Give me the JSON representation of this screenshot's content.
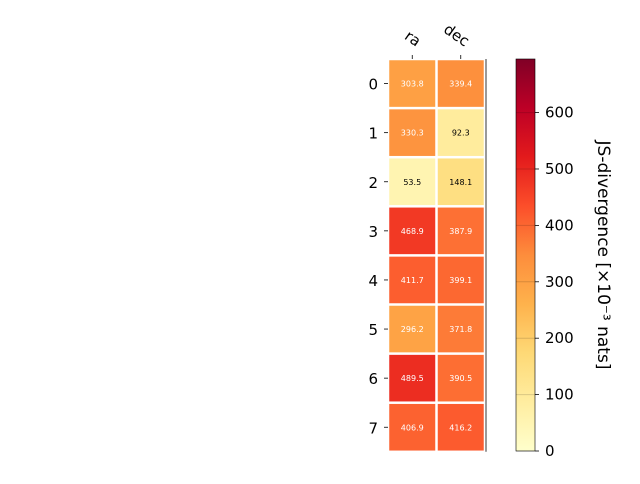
{
  "chart_data": {
    "type": "heatmap",
    "title": "",
    "columns": [
      "ra",
      "dec"
    ],
    "rows": [
      "0",
      "1",
      "2",
      "3",
      "4",
      "5",
      "6",
      "7"
    ],
    "values": [
      [
        303.8,
        339.4
      ],
      [
        330.3,
        92.3
      ],
      [
        53.5,
        148.1
      ],
      [
        468.9,
        387.9
      ],
      [
        411.7,
        399.1
      ],
      [
        296.2,
        371.8
      ],
      [
        489.5,
        390.5
      ],
      [
        406.9,
        416.2
      ]
    ],
    "colorbar": {
      "label": "JS-divergence [×10⁻³ nats]",
      "range": [
        0,
        695
      ],
      "ticks": [
        0,
        100,
        200,
        300,
        400,
        500,
        600
      ],
      "colormap": "YlOrRd",
      "colormap_stops": [
        "#ffffcc",
        "#ffeda0",
        "#fed976",
        "#feb24c",
        "#fd8d3c",
        "#fc4e2a",
        "#e31a1c",
        "#bd0026",
        "#800026"
      ]
    },
    "annotation_text_colors": {
      "light_cells": "#000000",
      "dark_cells": "#ffffff"
    }
  }
}
